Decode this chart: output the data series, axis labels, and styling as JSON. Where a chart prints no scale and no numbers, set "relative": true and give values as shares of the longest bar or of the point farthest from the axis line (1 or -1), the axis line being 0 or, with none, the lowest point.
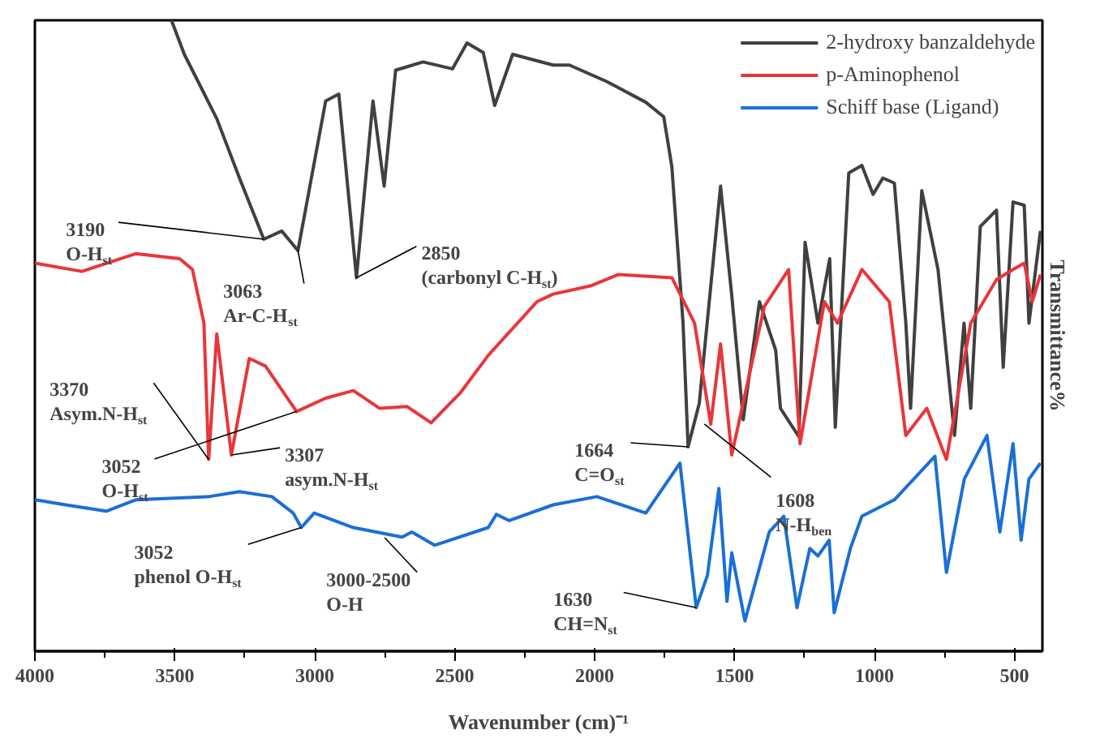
{
  "chart_data": {
    "type": "line",
    "relative": true,
    "xlabel": "Wavenumber (cm)⁻¹",
    "ylabel": "Transmittance%",
    "xlim": [
      4000,
      400
    ],
    "xticks": [
      4000,
      {
        "value": 3750,
        "label": null
      },
      3500,
      {
        "value": 3250,
        "label": null
      },
      3000,
      {
        "value": 2750,
        "label": null
      },
      2500,
      {
        "value": 2250,
        "label": null
      },
      2000,
      {
        "value": 1750,
        "label": null
      },
      1500,
      {
        "value": 1250,
        "label": null
      },
      1000,
      {
        "value": 750,
        "label": null
      },
      500
    ],
    "grid": false,
    "legend": "top right",
    "line_style": "solid",
    "marker": "none",
    "series": [
      {
        "name": "2-hydroxy banzaldehyde",
        "color": "#404040",
        "x": [
          3512,
          3466,
          3350,
          3269,
          3182,
          3118,
          3060,
          2961,
          2914,
          2851,
          2792,
          2752,
          2711,
          2613,
          2508,
          2456,
          2398,
          2357,
          2293,
          2148,
          2090,
          1957,
          1817,
          1753,
          1724,
          1684,
          1666,
          1626,
          1550,
          1510,
          1469,
          1411,
          1353,
          1336,
          1270,
          1248,
          1202,
          1160,
          1140,
          1092,
          1045,
          1005,
          970,
          929,
          888,
          871,
          831,
          773,
          714,
          680,
          656,
          622,
          564,
          540,
          505,
          465,
          448,
          407
        ],
        "values": [
          1.0,
          0.946,
          0.844,
          0.75,
          0.653,
          0.666,
          0.635,
          0.872,
          0.883,
          0.592,
          0.872,
          0.737,
          0.921,
          0.934,
          0.923,
          0.964,
          0.949,
          0.865,
          0.946,
          0.929,
          0.929,
          0.903,
          0.87,
          0.847,
          0.768,
          0.52,
          0.324,
          0.393,
          0.737,
          0.564,
          0.367,
          0.554,
          0.477,
          0.385,
          0.34,
          0.648,
          0.52,
          0.622,
          0.355,
          0.758,
          0.77,
          0.724,
          0.75,
          0.742,
          0.52,
          0.385,
          0.73,
          0.605,
          0.342,
          0.52,
          0.385,
          0.673,
          0.699,
          0.45,
          0.712,
          0.707,
          0.52,
          0.666
        ]
      },
      {
        "name": "p-Aminophenol",
        "color": "#e8363a",
        "x": [
          4000,
          3832,
          3640,
          3483,
          3437,
          3396,
          3379,
          3350,
          3298,
          3234,
          3176,
          3065,
          2961,
          2862,
          2769,
          2671,
          2584,
          2479,
          2380,
          2206,
          2148,
          2015,
          1916,
          1724,
          1643,
          1585,
          1550,
          1510,
          1394,
          1307,
          1266,
          1179,
          1132,
          1045,
          947,
          888,
          813,
          743,
          656,
          564,
          505,
          465,
          436,
          407
        ],
        "values": [
          0.615,
          0.602,
          0.63,
          0.622,
          0.605,
          0.52,
          0.304,
          0.503,
          0.311,
          0.464,
          0.452,
          0.38,
          0.401,
          0.413,
          0.385,
          0.388,
          0.362,
          0.41,
          0.469,
          0.554,
          0.566,
          0.579,
          0.597,
          0.592,
          0.52,
          0.36,
          0.487,
          0.311,
          0.546,
          0.605,
          0.329,
          0.554,
          0.52,
          0.605,
          0.554,
          0.342,
          0.385,
          0.304,
          0.52,
          0.589,
          0.605,
          0.615,
          0.554,
          0.597
        ]
      },
      {
        "name": "Schiff base (Ligand)",
        "color": "#1a6fd6",
        "x": [
          4000,
          3890,
          3745,
          3640,
          3379,
          3269,
          3153,
          3077,
          3048,
          3002,
          2862,
          2688,
          2653,
          2572,
          2380,
          2351,
          2305,
          2148,
          1992,
          1817,
          1695,
          1637,
          1597,
          1556,
          1527,
          1510,
          1463,
          1376,
          1324,
          1277,
          1231,
          1202,
          1162,
          1144,
          1086,
          1045,
          929,
          784,
          743,
          679,
          598,
          552,
          505,
          476,
          448,
          407
        ],
        "values": [
          0.24,
          0.232,
          0.222,
          0.24,
          0.245,
          0.253,
          0.245,
          0.219,
          0.196,
          0.219,
          0.196,
          0.181,
          0.189,
          0.168,
          0.196,
          0.217,
          0.207,
          0.232,
          0.245,
          0.219,
          0.298,
          0.069,
          0.12,
          0.258,
          0.079,
          0.156,
          0.048,
          0.189,
          0.214,
          0.069,
          0.163,
          0.151,
          0.176,
          0.061,
          0.163,
          0.214,
          0.24,
          0.309,
          0.125,
          0.273,
          0.342,
          0.189,
          0.329,
          0.176,
          0.273,
          0.298
        ]
      }
    ],
    "annotations": [
      {
        "text": "3190\nO-H$_{st}$",
        "x": 3182,
        "y": 0.653
      },
      {
        "text": "3063\nAr-C-H$_{st}$",
        "x": 3060,
        "y": 0.635
      },
      {
        "text": "2850\n(carbonyl C-H$_{st}$)",
        "x": 2851,
        "y": 0.592
      },
      {
        "text": "3370\nAsym.N-H$_{st}$",
        "x": 3379,
        "y": 0.304
      },
      {
        "text": "3052\nO-H$_{st}$",
        "x": 3065,
        "y": 0.38
      },
      {
        "text": "3307\nasym.N-H$_{st}$",
        "x": 3298,
        "y": 0.311
      },
      {
        "text": "3052\nphenol O-H$_{st}$",
        "x": 3048,
        "y": 0.196
      },
      {
        "text": "3000-2500\nO-H",
        "x": 2750,
        "y": 0.18
      },
      {
        "text": "1664\nC=O$_{st}$",
        "x": 1666,
        "y": 0.324
      },
      {
        "text": "1608\nN-H$_{ben}$",
        "x": 1608,
        "y": 0.36
      },
      {
        "text": "1630\nCH=N$_{st}$",
        "x": 1637,
        "y": 0.069
      }
    ]
  }
}
